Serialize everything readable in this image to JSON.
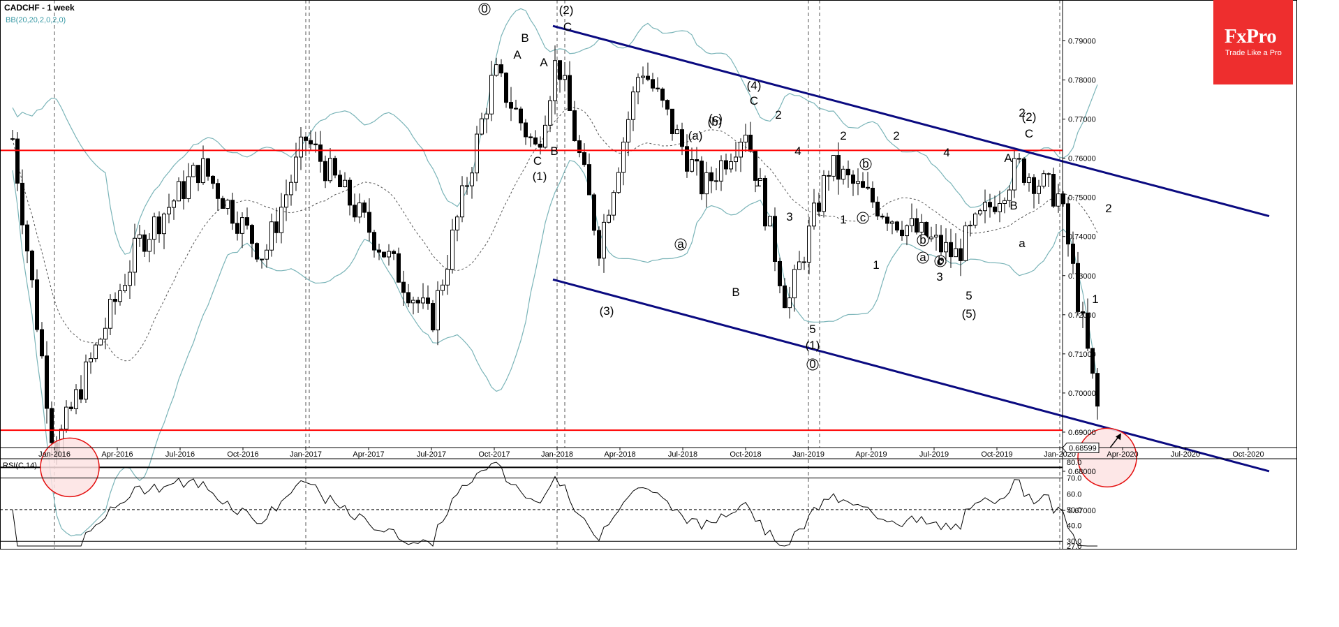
{
  "header": {
    "title": "CADCHF - 1 week",
    "indicator": "BB(20,20,2,0,2,0)"
  },
  "logo": {
    "brand": "FxPro",
    "tagline": "Trade Like a Pro"
  },
  "colors": {
    "support": "#ff0000",
    "channel": "#0a0a80",
    "bands": "#7ab4b8",
    "base": "#000000",
    "circle_fill": "#fde3e3",
    "logo_bg": "#ee2e2e"
  },
  "chart_data": {
    "type": "candlestick",
    "symbol": "CADCHF",
    "timeframe": "1 week",
    "ylim": [
      0.66,
      0.8
    ],
    "current_price": "0.68599",
    "y_ticks": [
      "0.79000",
      "0.78000",
      "0.77000",
      "0.76000",
      "0.75000",
      "0.74000",
      "0.73000",
      "0.72000",
      "0.71000",
      "0.70000",
      "0.69000",
      "0.68000",
      "0.67000"
    ],
    "x_ticks": [
      "Jan-2016",
      "Apr-2016",
      "Jul-2016",
      "Oct-2016",
      "Jan-2017",
      "Apr-2017",
      "Jul-2017",
      "Oct-2017",
      "Jan-2018",
      "Apr-2018",
      "Jul-2018",
      "Oct-2018",
      "Jan-2019",
      "Apr-2019",
      "Jul-2019",
      "Oct-2019",
      "Jan-2020",
      "Apr-2020",
      "Jul-2020",
      "Oct-2020"
    ],
    "horizontal_levels": [
      {
        "price": 0.762,
        "color": "red"
      },
      {
        "price": 0.6905,
        "color": "red"
      },
      {
        "price": 0.681,
        "color": "black"
      }
    ],
    "channel": {
      "upper": [
        {
          "date": "2018-01",
          "price": 0.7938
        },
        {
          "date": "2020-11",
          "price": 0.7452
        }
      ],
      "lower": [
        {
          "date": "2018-01",
          "price": 0.729
        },
        {
          "date": "2020-11",
          "price": 0.68
        }
      ]
    },
    "price_path": [
      [
        "2015-11",
        0.765
      ],
      [
        "2016-01",
        0.685
      ],
      [
        "2016-05",
        0.738
      ],
      [
        "2016-08",
        0.758
      ],
      [
        "2016-11",
        0.735
      ],
      [
        "2017-01",
        0.765
      ],
      [
        "2017-04",
        0.742
      ],
      [
        "2017-07",
        0.718
      ],
      [
        "2017-10",
        0.782
      ],
      [
        "2017-12",
        0.762
      ],
      [
        "2018-01",
        0.786
      ],
      [
        "2018-03",
        0.738
      ],
      [
        "2018-05",
        0.784
      ],
      [
        "2018-08",
        0.752
      ],
      [
        "2018-10",
        0.768
      ],
      [
        "2018-12",
        0.722
      ],
      [
        "2019-02",
        0.758
      ],
      [
        "2019-05",
        0.745
      ],
      [
        "2019-08",
        0.735
      ],
      [
        "2019-11",
        0.758
      ],
      [
        "2020-01",
        0.75
      ],
      [
        "2020-03",
        0.69
      ]
    ],
    "wave_labels": [
      "(2)",
      "C",
      "A",
      "B",
      "A",
      "C",
      "B",
      "(1)",
      "(4)",
      "C",
      "2",
      "1",
      "4",
      "3",
      "(a)",
      "(b)",
      "(c)",
      "a",
      "b",
      "c",
      "B",
      "(3)",
      "2",
      "1",
      "a",
      "b",
      "c",
      "5",
      "(5)",
      "4",
      "2",
      "a",
      "b",
      "c",
      "3",
      "5",
      "(1)",
      "(2)",
      "C",
      "A",
      "B",
      "2",
      "1",
      "0",
      "0",
      "1",
      "2"
    ],
    "rsi": {
      "label": "RSI(C,14)",
      "levels": [
        "80.0",
        "70.0",
        "60.0",
        "50.0",
        "40.0",
        "30.0",
        "27.0"
      ],
      "current": 27.0
    }
  }
}
